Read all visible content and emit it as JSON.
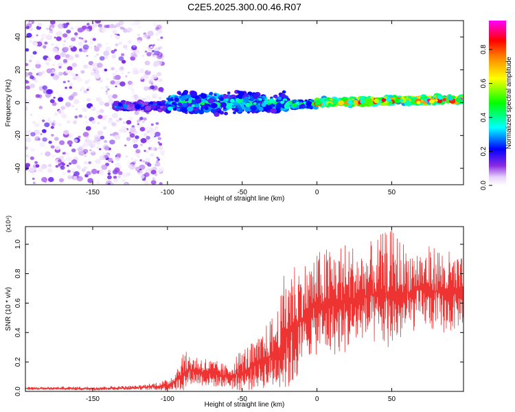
{
  "title": "C2E5.2025.300.00.46.R07",
  "chart_data": [
    {
      "type": "heatmap",
      "xlabel": "Height of straight line (km)",
      "ylabel": "Frequency (Hz)",
      "xlim": [
        -195,
        98
      ],
      "ylim": [
        -50,
        50
      ],
      "xticks": [
        -150,
        -100,
        -50,
        0,
        50
      ],
      "yticks": [
        -40,
        -20,
        0,
        20,
        40
      ],
      "colorbar": {
        "label": "Normalized spectral amplitude",
        "range": [
          0,
          0.97
        ],
        "ticks": [
          "0.0",
          "0.2",
          "0.4",
          "0.6",
          "0.8"
        ],
        "colors": [
          "#ffffff",
          "#e6d3fb",
          "#8a2be2",
          "#0000ff",
          "#00ffff",
          "#00ff00",
          "#ffff00",
          "#ff8000",
          "#ff0000",
          "#ff00ff"
        ]
      },
      "bands": [
        {
          "x": [
            -195,
            -103
          ],
          "freq_center": 0,
          "freq_halfwidth": 50,
          "amplitude": "low (scattered 0.02-0.15)"
        },
        {
          "x": [
            -135,
            -100
          ],
          "freq_center": -2,
          "freq_halfwidth": 3,
          "amplitude": 0.25
        },
        {
          "x": [
            -100,
            -20
          ],
          "freq_center": 0,
          "freq_halfwidth": 8,
          "amplitude": 0.35
        },
        {
          "x": [
            -20,
            0
          ],
          "freq_center": -1,
          "freq_halfwidth": 3,
          "amplitude": 0.4
        },
        {
          "x": [
            0,
            98
          ],
          "freq_center": 0,
          "freq_halfwidth": 3,
          "amplitude": 0.75
        }
      ]
    },
    {
      "type": "line",
      "xlabel": "Height of straight line (km)",
      "ylabel": "SNR (10 * v/v)",
      "multiplier": "(x10⁴)",
      "xlim": [
        -195,
        98
      ],
      "ylim": [
        0,
        1.12
      ],
      "xticks": [
        -150,
        -100,
        -50,
        0,
        50
      ],
      "yticks": [
        "0.0",
        "0.2",
        "0.4",
        "0.6",
        "0.8",
        "1.0"
      ],
      "color": "#ee3333",
      "series": [
        {
          "x": [
            -195,
            -150,
            -120,
            -100,
            -95,
            -90,
            -85,
            -80,
            -70,
            -60,
            -50,
            -40,
            -30,
            -25,
            -20,
            -15,
            -10,
            -5,
            0,
            10,
            20,
            30,
            40,
            50,
            60,
            70,
            80,
            90,
            98
          ],
          "y": [
            0.02,
            0.02,
            0.025,
            0.04,
            0.07,
            0.12,
            0.15,
            0.14,
            0.12,
            0.1,
            0.13,
            0.18,
            0.25,
            0.3,
            0.38,
            0.45,
            0.5,
            0.55,
            0.58,
            0.6,
            0.62,
            0.65,
            0.66,
            0.68,
            0.67,
            0.7,
            0.68,
            0.66,
            0.67
          ],
          "peak_y": [
            0.03,
            0.035,
            0.04,
            0.08,
            0.14,
            0.28,
            0.26,
            0.25,
            0.22,
            0.18,
            0.3,
            0.35,
            0.52,
            0.6,
            0.95,
            0.9,
            0.88,
            0.9,
            0.95,
            1.0,
            1.02,
            0.98,
            1.05,
            1.12,
            1.0,
            0.98,
            1.0,
            0.95,
            0.9
          ]
        }
      ]
    }
  ]
}
